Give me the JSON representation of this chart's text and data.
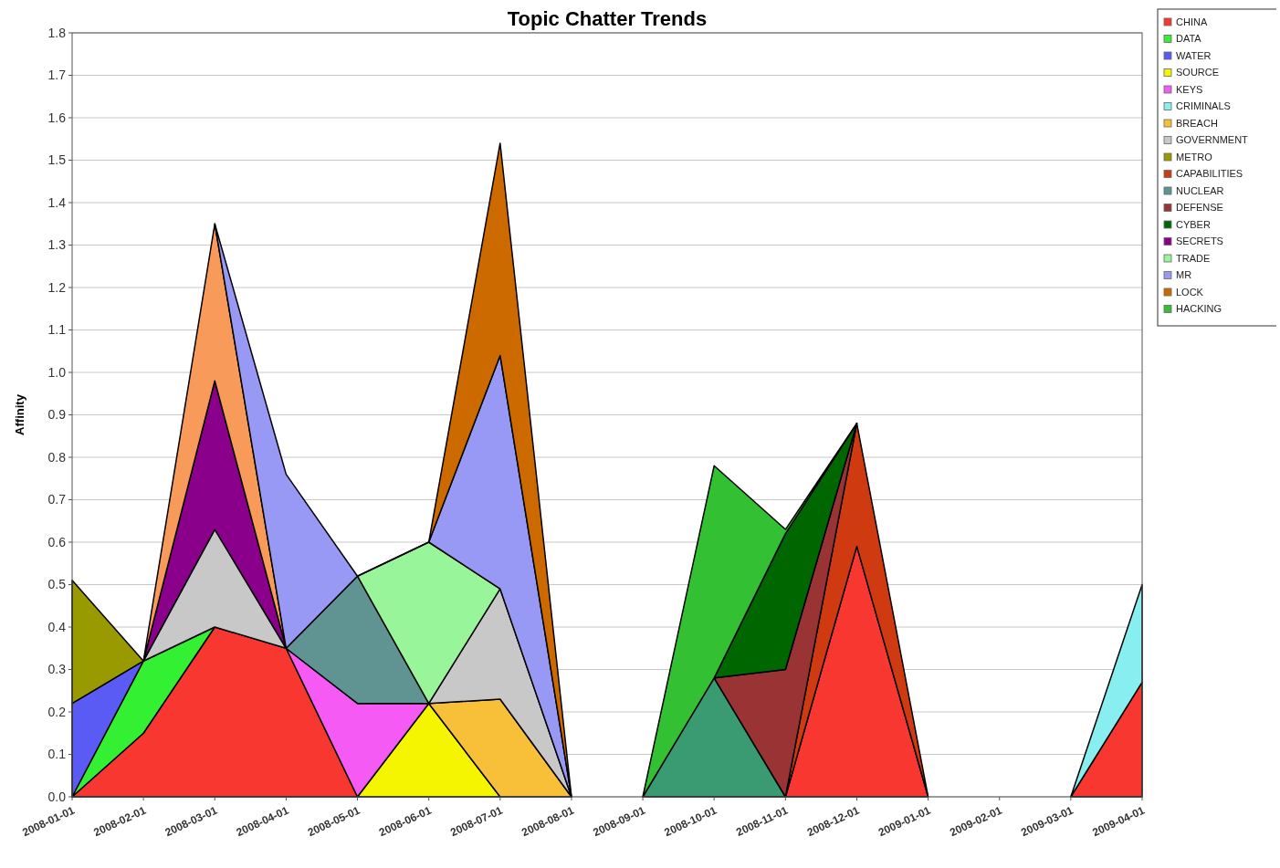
{
  "chart_data": {
    "type": "area",
    "stacked": true,
    "title": "Topic Chatter Trends",
    "ylabel": "Affinity",
    "categories": [
      "2008-01-01",
      "2008-02-01",
      "2008-03-01",
      "2008-04-01",
      "2008-05-01",
      "2008-06-01",
      "2008-07-01",
      "2008-08-01",
      "2008-09-01",
      "2008-10-01",
      "2008-11-01",
      "2008-12-01",
      "2009-01-01",
      "2009-02-01",
      "2009-03-01",
      "2009-04-01"
    ],
    "ylim": [
      0,
      1.8
    ],
    "yticks": [
      {
        "value": 0,
        "label": "0.0"
      },
      {
        "value": 0.1,
        "label": "0.1"
      },
      {
        "value": 0.2,
        "label": "0.2"
      },
      {
        "value": 0.3,
        "label": "0.3"
      },
      {
        "value": 0.4,
        "label": "0.4"
      },
      {
        "value": 0.5,
        "label": "0.5"
      },
      {
        "value": 0.6,
        "label": "0.6"
      },
      {
        "value": 0.7,
        "label": "0.7"
      },
      {
        "value": 0.8,
        "label": "0.8"
      },
      {
        "value": 0.9,
        "label": "0.9"
      },
      {
        "value": 1,
        "label": "1.0"
      },
      {
        "value": 1.1,
        "label": "1.1"
      },
      {
        "value": 1.2,
        "label": "1.2"
      },
      {
        "value": 1.3,
        "label": "1.3"
      },
      {
        "value": 1.4,
        "label": "1.4"
      },
      {
        "value": 1.5,
        "label": "1.5"
      },
      {
        "value": 1.6,
        "label": "1.6"
      },
      {
        "value": 1.7,
        "label": "1.7"
      },
      {
        "value": 1.8,
        "label": "1.8"
      }
    ],
    "grid": "y",
    "legend": "right",
    "series": [
      {
        "name": "CHINA",
        "color": "#f83830",
        "values": [
          0,
          0.15,
          0.4,
          0.35,
          0,
          null,
          null,
          null,
          null,
          null,
          0,
          0.59,
          0,
          null,
          0,
          0.27
        ]
      },
      {
        "name": "DATA",
        "color": "#33f033",
        "values": [
          0,
          0.17,
          0,
          null,
          null,
          null,
          null,
          null,
          null,
          null,
          null,
          null,
          null,
          null,
          null,
          null
        ]
      },
      {
        "name": "WATER",
        "color": "#5a5af5",
        "values": [
          0.22,
          0,
          null,
          null,
          null,
          null,
          null,
          null,
          null,
          null,
          null,
          null,
          null,
          null,
          null,
          null
        ]
      },
      {
        "name": "SOURCE",
        "color": "#f5f500",
        "values": [
          null,
          null,
          null,
          null,
          0,
          0.22,
          0,
          null,
          null,
          null,
          null,
          null,
          null,
          null,
          null,
          null
        ]
      },
      {
        "name": "KEYS",
        "color": "#f55af5",
        "values": [
          null,
          null,
          null,
          0,
          0.22,
          0,
          null,
          null,
          null,
          null,
          null,
          null,
          null,
          null,
          null,
          null
        ]
      },
      {
        "name": "CRIMINALS",
        "color": "#88eef0",
        "values": [
          null,
          null,
          null,
          null,
          null,
          null,
          null,
          null,
          null,
          null,
          null,
          null,
          null,
          null,
          0,
          0.23
        ]
      },
      {
        "name": "BREACH",
        "color": "#f8c038",
        "values": [
          null,
          null,
          null,
          null,
          null,
          0,
          0.23,
          0,
          null,
          null,
          null,
          null,
          null,
          null,
          null,
          null
        ]
      },
      {
        "name": "GOVERNMENT",
        "color": "#c8c8c8",
        "values": [
          null,
          0,
          0.23,
          0,
          null,
          0,
          0.26,
          0,
          null,
          null,
          null,
          null,
          null,
          null,
          null,
          null
        ]
      },
      {
        "color": "#3a9a72",
        "values": [
          null,
          null,
          null,
          null,
          null,
          null,
          null,
          null,
          0,
          0.28,
          0,
          null,
          null,
          null,
          null,
          null
        ]
      },
      {
        "name": "METRO",
        "color": "#999900",
        "values": [
          0.29,
          0,
          null,
          null,
          null,
          null,
          null,
          null,
          null,
          null,
          null,
          null,
          null,
          null,
          null,
          null
        ]
      },
      {
        "name": "CAPABILITIES",
        "color": "#d03a10",
        "values": [
          null,
          null,
          null,
          null,
          null,
          null,
          null,
          null,
          null,
          null,
          0,
          0.29,
          0,
          null,
          null,
          null
        ]
      },
      {
        "name": "NUCLEAR",
        "color": "#5f9493",
        "values": [
          null,
          null,
          null,
          0,
          0.3,
          0,
          null,
          null,
          null,
          null,
          null,
          null,
          null,
          null,
          null,
          null
        ]
      },
      {
        "name": "DEFENSE",
        "color": "#9a3434",
        "values": [
          null,
          null,
          null,
          null,
          null,
          null,
          null,
          null,
          null,
          0,
          0.3,
          0,
          null,
          null,
          null,
          null
        ]
      },
      {
        "name": "CYBER",
        "color": "#006600",
        "values": [
          null,
          null,
          null,
          null,
          null,
          null,
          null,
          null,
          null,
          0,
          0.32,
          0,
          null,
          null,
          null,
          null
        ]
      },
      {
        "name": "SECRETS",
        "color": "#8a008a",
        "values": [
          null,
          0,
          0.35,
          0,
          null,
          null,
          null,
          null,
          null,
          null,
          null,
          null,
          null,
          null,
          null,
          null
        ]
      },
      {
        "color": "#f89a5a",
        "values": [
          null,
          0,
          0.37,
          0,
          null,
          null,
          null,
          null,
          null,
          null,
          null,
          null,
          null,
          null,
          null,
          null
        ]
      },
      {
        "name": "TRADE",
        "color": "#99f599",
        "values": [
          null,
          null,
          null,
          null,
          0,
          0.38,
          0,
          null,
          null,
          null,
          null,
          null,
          null,
          null,
          null,
          null
        ]
      },
      {
        "name": "MR",
        "color": "#9898f5",
        "values": [
          null,
          null,
          0,
          0.41,
          0,
          0,
          0.55,
          0,
          null,
          null,
          null,
          null,
          null,
          null,
          null,
          null
        ]
      },
      {
        "name": "LOCK",
        "color": "#cc6a00",
        "values": [
          null,
          null,
          null,
          null,
          null,
          0,
          0.5,
          0,
          null,
          null,
          null,
          null,
          null,
          null,
          null,
          null
        ]
      },
      {
        "name": "HACKING",
        "color": "#33c033",
        "values": [
          null,
          null,
          null,
          null,
          null,
          null,
          null,
          null,
          0,
          0.5,
          0.01,
          0,
          null,
          null,
          null,
          null
        ]
      }
    ]
  }
}
